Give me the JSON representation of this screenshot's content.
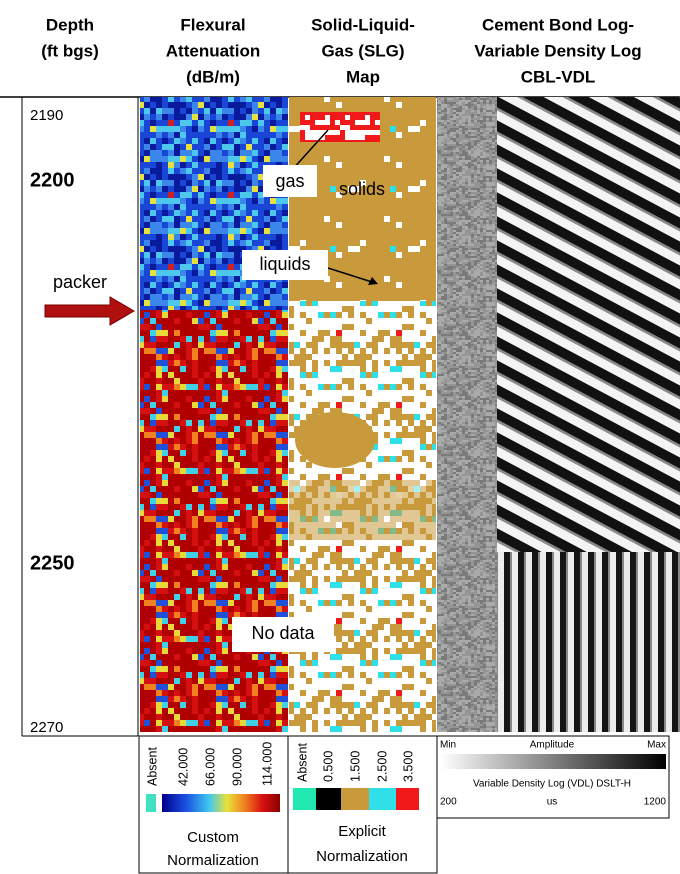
{
  "headers": [
    [
      "Depth",
      "(ft bgs)"
    ],
    [
      "Flexural",
      "Attenuation",
      "(dB/m)"
    ],
    [
      "Solid-Liquid-",
      "Gas (SLG)",
      "Map"
    ],
    [
      "Cement Bond Log-",
      "Variable Density Log",
      "CBL-VDL"
    ]
  ],
  "depth_labels": [
    "2190",
    "2200",
    "2250",
    "2270"
  ],
  "annotations": {
    "packer": "packer",
    "gas": "gas",
    "solids": "solids",
    "liquids": "liquids",
    "no_data": "No data"
  },
  "legends": {
    "flexural": {
      "ticks": [
        "Absent",
        "42.000",
        "66.000",
        "90.000",
        "114.000"
      ],
      "title": [
        "Custom",
        "Normalization"
      ]
    },
    "slg": {
      "ticks": [
        "Absent",
        "0.500",
        "1.500",
        "2.500",
        "3.500"
      ],
      "title": [
        "Explicit",
        "Normalization"
      ]
    },
    "vdl": {
      "min": "Min",
      "amplitude": "Amplitude",
      "max": "Max",
      "caption": "Variable Density Log (VDL) DSLT-H",
      "start": "200",
      "unit": "us",
      "end": "1200"
    }
  }
}
